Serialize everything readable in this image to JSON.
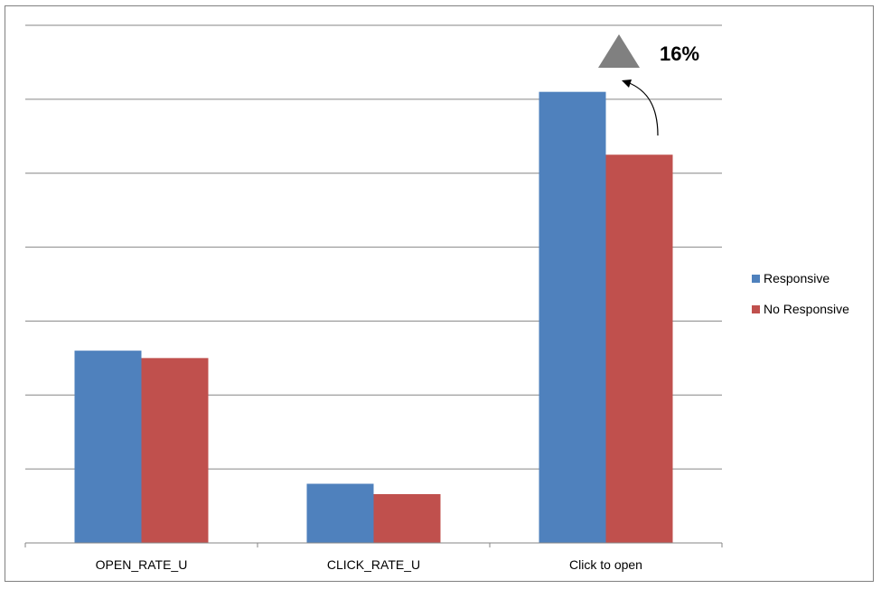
{
  "chart_data": {
    "type": "bar",
    "title": "",
    "xlabel": "",
    "ylabel": "",
    "categories": [
      "OPEN_RATE_U",
      "CLICK_RATE_U",
      "Click to open"
    ],
    "series": [
      {
        "name": "Responsive",
        "values": [
          26,
          8,
          61
        ],
        "color": "#4F81BD"
      },
      {
        "name": "No Responsive",
        "values": [
          25,
          6.6,
          52.5
        ],
        "color": "#C0504D"
      }
    ],
    "ylim": [
      0,
      70
    ],
    "ytick_step": 10,
    "y_tick_labels_shown": false,
    "grid": true,
    "legend_placement": "right",
    "annotation": {
      "text": "16%",
      "icon": "up-triangle-icon",
      "arrow": "curved-arrow-icon",
      "target_category": "Click to open"
    }
  }
}
